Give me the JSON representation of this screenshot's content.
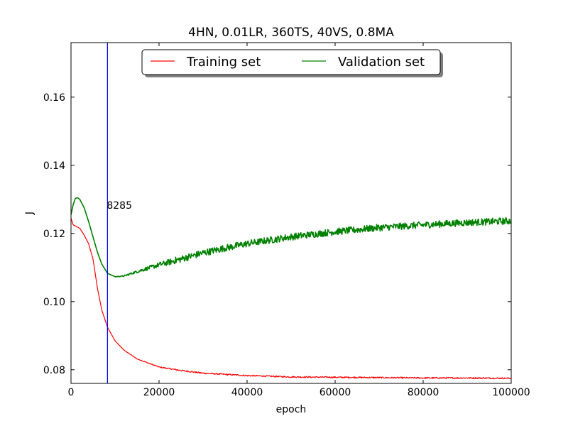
{
  "chart_data": {
    "type": "line",
    "title": "4HN, 0.01LR, 360TS, 40VS, 0.8MA",
    "xlabel": "epoch",
    "ylabel": "J",
    "xlim": [
      0,
      100000
    ],
    "ylim": [
      0.076,
      0.176
    ],
    "xticks": [
      0,
      20000,
      40000,
      60000,
      80000,
      100000
    ],
    "xtick_labels": [
      "0",
      "20000",
      "40000",
      "60000",
      "80000",
      "100000"
    ],
    "yticks": [
      0.08,
      0.1,
      0.12,
      0.14,
      0.16
    ],
    "ytick_labels": [
      "0.08",
      "0.10",
      "0.12",
      "0.14",
      "0.16"
    ],
    "grid": false,
    "legend": {
      "placement": "top-center",
      "columns": 2
    },
    "vline": {
      "x": 8285,
      "label": "8285",
      "color": "#0000ff"
    },
    "series": [
      {
        "name": "Training set",
        "color": "#ff0000",
        "noise": 0.0002,
        "points": [
          [
            0,
            0.1245
          ],
          [
            500,
            0.1225
          ],
          [
            1000,
            0.1222
          ],
          [
            2000,
            0.1215
          ],
          [
            3000,
            0.1195
          ],
          [
            4000,
            0.117
          ],
          [
            5000,
            0.1125
          ],
          [
            6000,
            0.104
          ],
          [
            7000,
            0.0975
          ],
          [
            8285,
            0.0925
          ],
          [
            10000,
            0.0885
          ],
          [
            12000,
            0.0858
          ],
          [
            15000,
            0.0832
          ],
          [
            20000,
            0.0808
          ],
          [
            25000,
            0.0798
          ],
          [
            30000,
            0.079
          ],
          [
            40000,
            0.0783
          ],
          [
            50000,
            0.0779
          ],
          [
            60000,
            0.0778
          ],
          [
            70000,
            0.0777
          ],
          [
            80000,
            0.0776
          ],
          [
            90000,
            0.0776
          ],
          [
            100000,
            0.0775
          ]
        ]
      },
      {
        "name": "Validation set",
        "color": "#008000",
        "noise": 0.001,
        "points": [
          [
            0,
            0.1255
          ],
          [
            500,
            0.1285
          ],
          [
            1000,
            0.1303
          ],
          [
            1500,
            0.1305
          ],
          [
            2000,
            0.13
          ],
          [
            3000,
            0.1275
          ],
          [
            4000,
            0.1235
          ],
          [
            5000,
            0.119
          ],
          [
            6000,
            0.1145
          ],
          [
            7000,
            0.111
          ],
          [
            8285,
            0.1083
          ],
          [
            10000,
            0.1073
          ],
          [
            12000,
            0.1075
          ],
          [
            15000,
            0.1088
          ],
          [
            20000,
            0.1108
          ],
          [
            25000,
            0.1125
          ],
          [
            30000,
            0.1143
          ],
          [
            35000,
            0.1157
          ],
          [
            40000,
            0.117
          ],
          [
            50000,
            0.119
          ],
          [
            60000,
            0.1205
          ],
          [
            70000,
            0.1217
          ],
          [
            80000,
            0.1225
          ],
          [
            90000,
            0.1232
          ],
          [
            100000,
            0.1237
          ]
        ]
      }
    ]
  }
}
